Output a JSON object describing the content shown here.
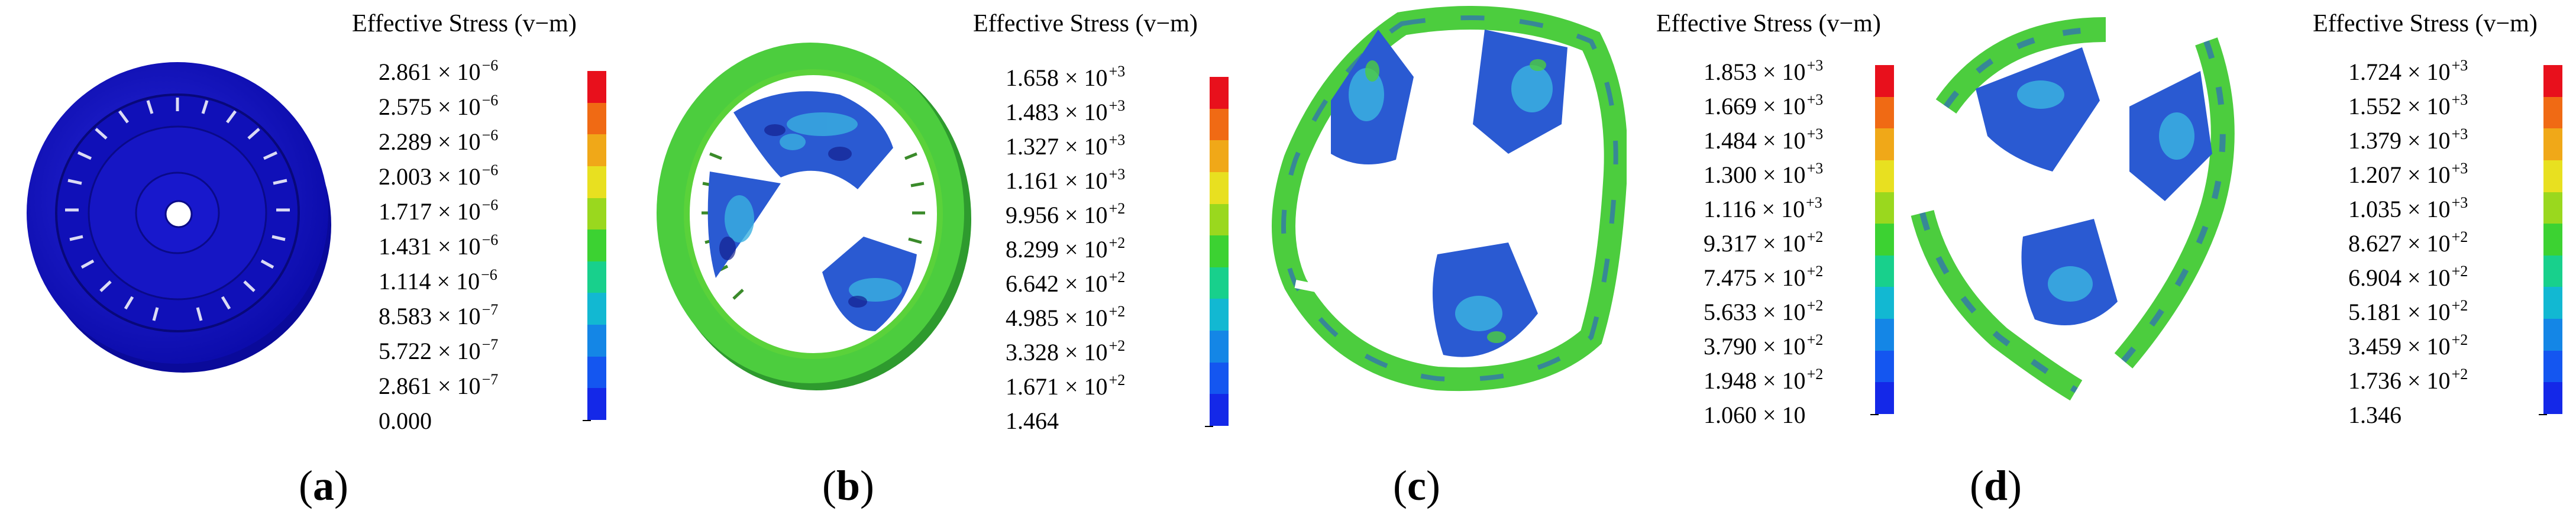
{
  "panels": [
    {
      "id": "a",
      "caption_open": "(",
      "caption_letter": "a",
      "caption_close": ")",
      "legend_title": "Effective Stress (v−m)",
      "ticks": [
        {
          "mantissa": "2.861 × 10",
          "exponent": "−6"
        },
        {
          "mantissa": "2.575 × 10",
          "exponent": "−6"
        },
        {
          "mantissa": "2.289 × 10",
          "exponent": "−6"
        },
        {
          "mantissa": "2.003 × 10",
          "exponent": "−6"
        },
        {
          "mantissa": "1.717 × 10",
          "exponent": "−6"
        },
        {
          "mantissa": "1.431 × 10",
          "exponent": "−6"
        },
        {
          "mantissa": "1.114 × 10",
          "exponent": "−6"
        },
        {
          "mantissa": "8.583 × 10",
          "exponent": "−7"
        },
        {
          "mantissa": "5.722 × 10",
          "exponent": "−7"
        },
        {
          "mantissa": "2.861 × 10",
          "exponent": "−7"
        },
        {
          "mantissa": "0.000",
          "exponent": ""
        }
      ]
    },
    {
      "id": "b",
      "caption_open": "(",
      "caption_letter": "b",
      "caption_close": ")",
      "legend_title": "Effective Stress (v−m)",
      "ticks": [
        {
          "mantissa": "1.658 × 10",
          "exponent": "+3"
        },
        {
          "mantissa": "1.483 × 10",
          "exponent": "+3"
        },
        {
          "mantissa": "1.327 × 10",
          "exponent": "+3"
        },
        {
          "mantissa": "1.161 × 10",
          "exponent": "+3"
        },
        {
          "mantissa": "9.956 × 10",
          "exponent": "+2"
        },
        {
          "mantissa": "8.299 × 10",
          "exponent": "+2"
        },
        {
          "mantissa": "6.642 × 10",
          "exponent": "+2"
        },
        {
          "mantissa": "4.985 × 10",
          "exponent": "+2"
        },
        {
          "mantissa": "3.328 × 10",
          "exponent": "+2"
        },
        {
          "mantissa": "1.671 × 10",
          "exponent": "+2"
        },
        {
          "mantissa": "1.464",
          "exponent": ""
        }
      ]
    },
    {
      "id": "c",
      "caption_open": "(",
      "caption_letter": "c",
      "caption_close": ")",
      "legend_title": "Effective Stress (v−m)",
      "ticks": [
        {
          "mantissa": "1.853 × 10",
          "exponent": "+3"
        },
        {
          "mantissa": "1.669 × 10",
          "exponent": "+3"
        },
        {
          "mantissa": "1.484 × 10",
          "exponent": "+3"
        },
        {
          "mantissa": "1.300 × 10",
          "exponent": "+3"
        },
        {
          "mantissa": "1.116 × 10",
          "exponent": "+3"
        },
        {
          "mantissa": "9.317 × 10",
          "exponent": "+2"
        },
        {
          "mantissa": "7.475 × 10",
          "exponent": "+2"
        },
        {
          "mantissa": "5.633 × 10",
          "exponent": "+2"
        },
        {
          "mantissa": "3.790 × 10",
          "exponent": "+2"
        },
        {
          "mantissa": "1.948 × 10",
          "exponent": "+2"
        },
        {
          "mantissa": "1.060 × 10",
          "exponent": ""
        }
      ]
    },
    {
      "id": "d",
      "caption_open": "(",
      "caption_letter": "d",
      "caption_close": ")",
      "legend_title": "Effective Stress (v−m)",
      "ticks": [
        {
          "mantissa": "1.724 × 10",
          "exponent": "+3"
        },
        {
          "mantissa": "1.552 × 10",
          "exponent": "+3"
        },
        {
          "mantissa": "1.379 × 10",
          "exponent": "+3"
        },
        {
          "mantissa": "1.207 × 10",
          "exponent": "+3"
        },
        {
          "mantissa": "1.035 × 10",
          "exponent": "+3"
        },
        {
          "mantissa": "8.627 × 10",
          "exponent": "+2"
        },
        {
          "mantissa": "6.904 × 10",
          "exponent": "+2"
        },
        {
          "mantissa": "5.181 × 10",
          "exponent": "+2"
        },
        {
          "mantissa": "3.459 × 10",
          "exponent": "+2"
        },
        {
          "mantissa": "1.736 × 10",
          "exponent": "+2"
        },
        {
          "mantissa": "1.346",
          "exponent": ""
        }
      ]
    }
  ],
  "colorbar": [
    "#e8101c",
    "#f06a14",
    "#f0a818",
    "#e8e020",
    "#9ad81e",
    "#3cd232",
    "#18d08c",
    "#12b8d2",
    "#1486e6",
    "#1456f0",
    "#1428e8"
  ],
  "colors": {
    "model_blue": "#1414c8",
    "model_green": "#5ad23a",
    "mesh_blue": "#2a5ad2",
    "mesh_light": "#3ab0e0"
  }
}
